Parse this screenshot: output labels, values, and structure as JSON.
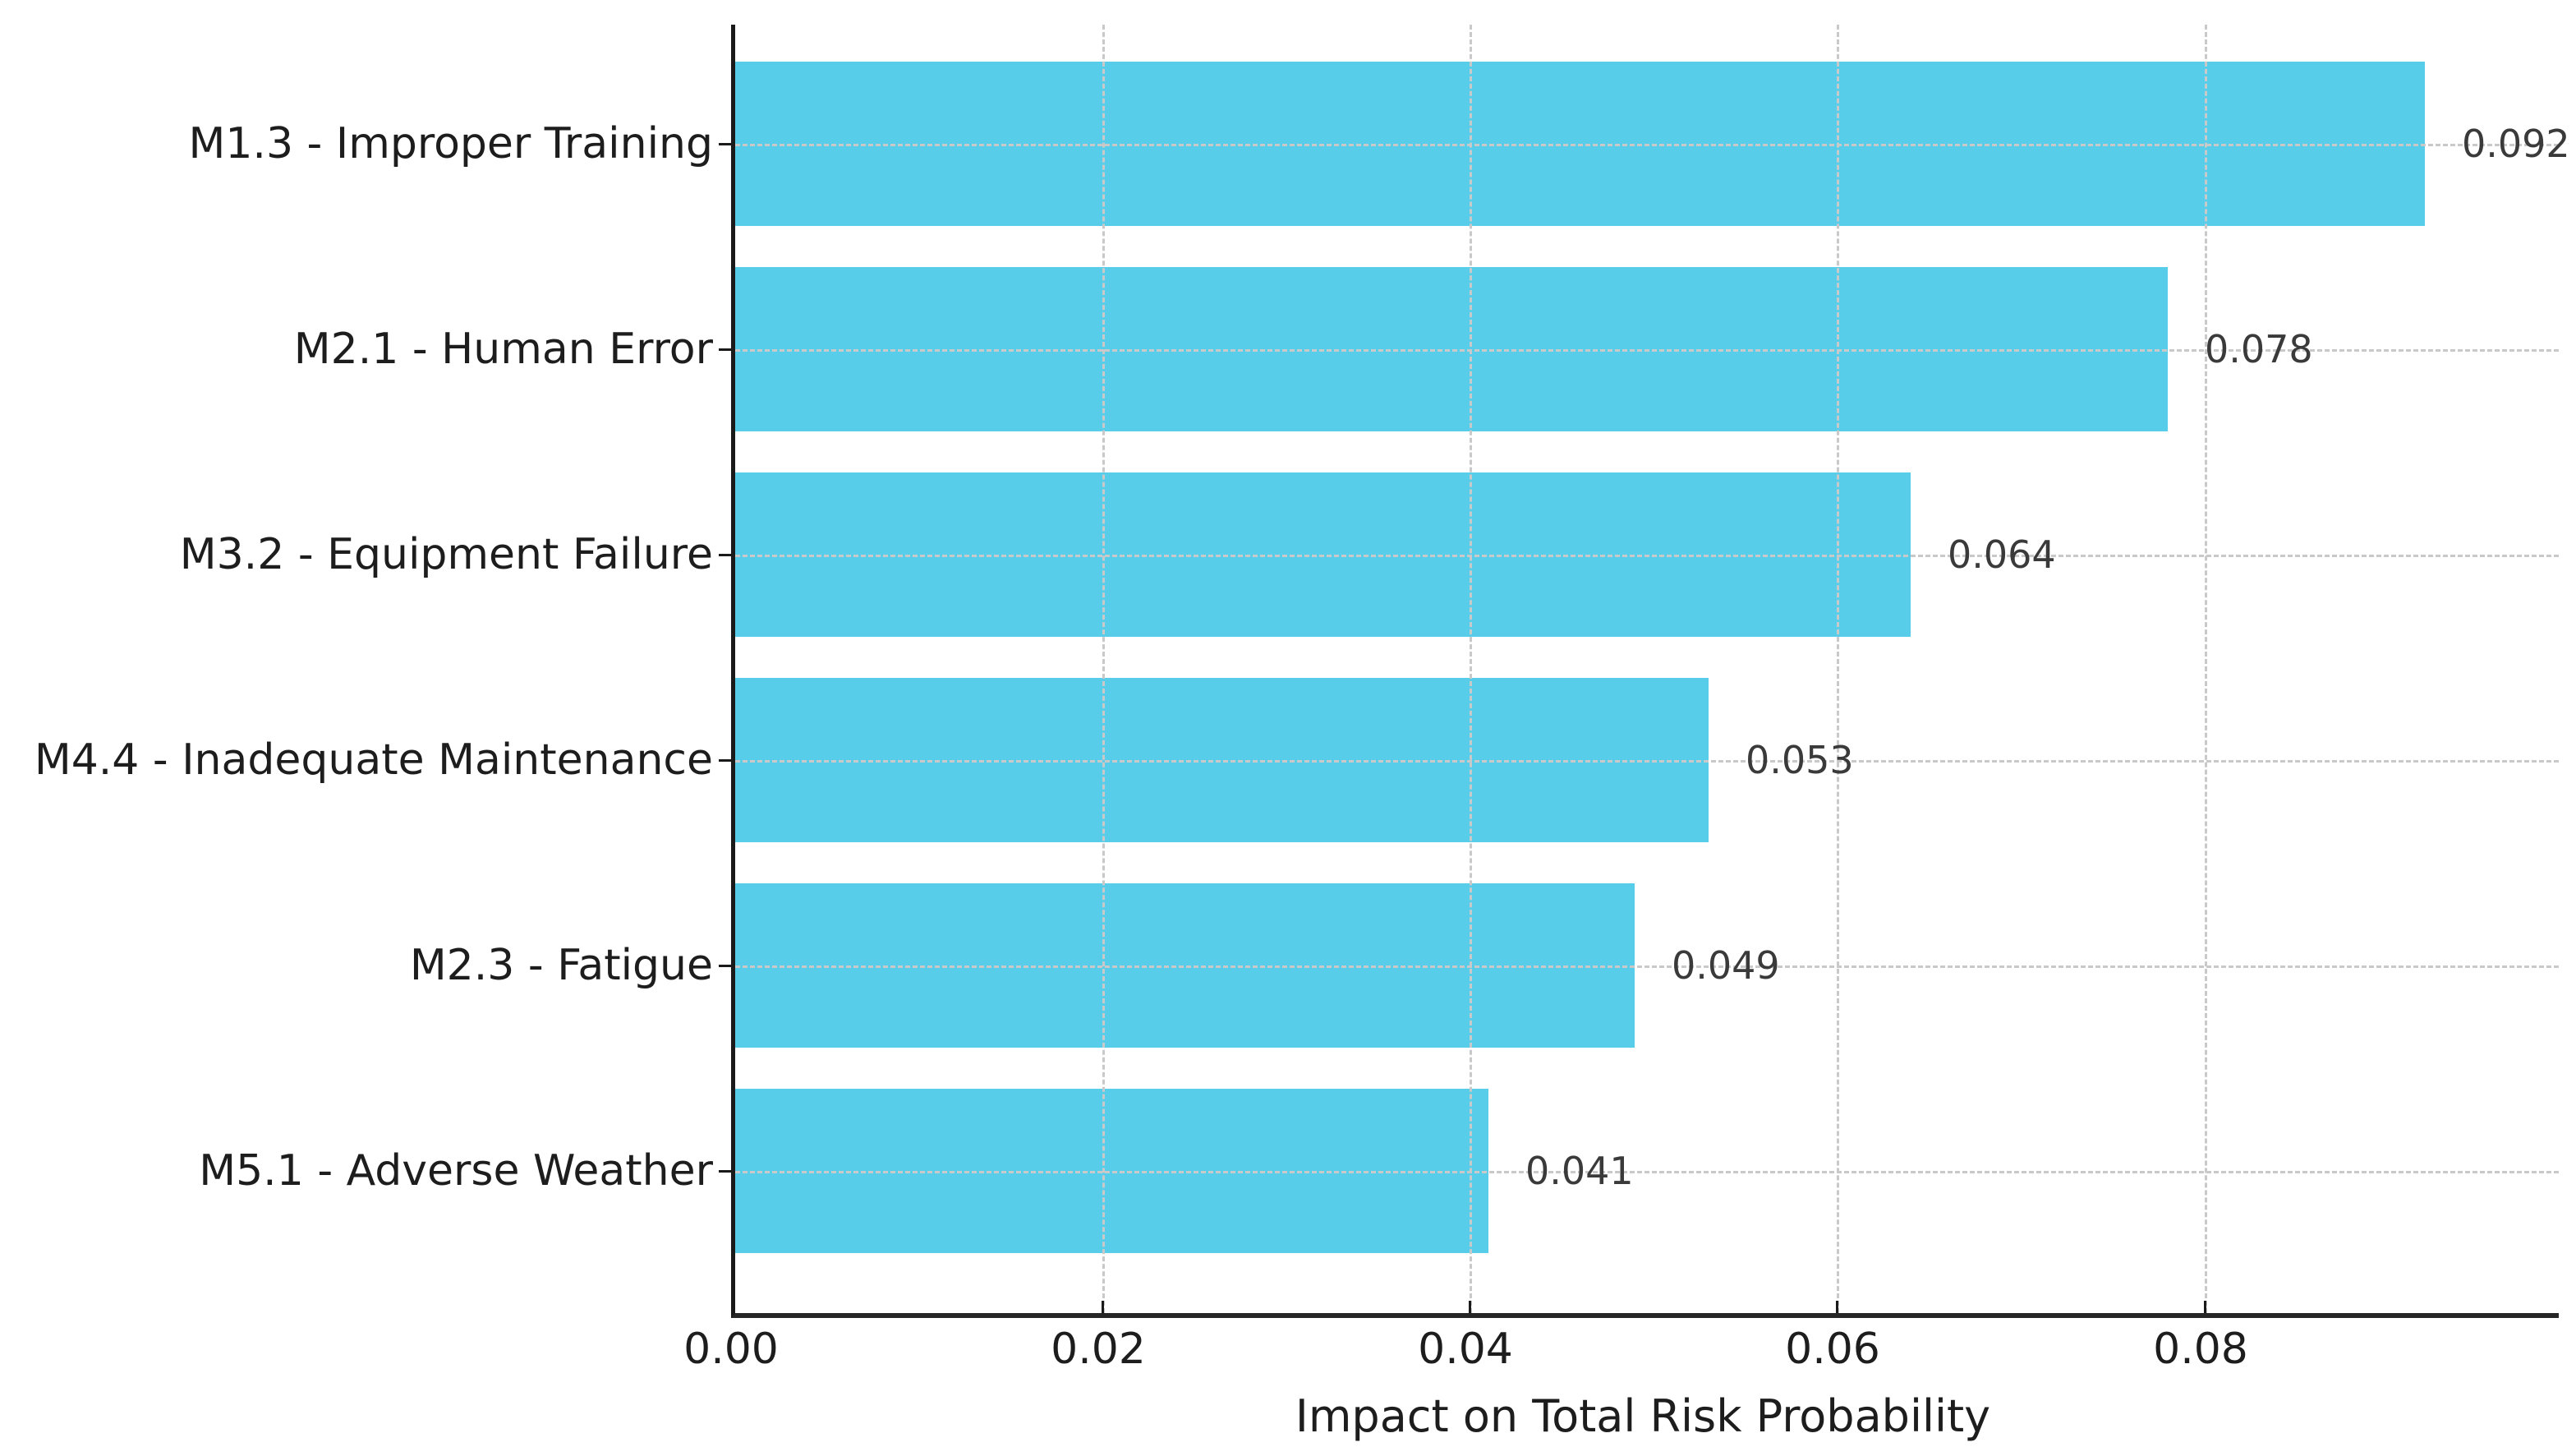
{
  "chart_data": {
    "type": "bar",
    "orientation": "horizontal",
    "title": "",
    "xlabel": "Impact on Total Risk Probability",
    "ylabel": "",
    "categories": [
      "M1.3 - Improper Training",
      "M2.1 - Human Error",
      "M3.2 - Equipment Failure",
      "M4.4 - Inadequate Maintenance",
      "M2.3 - Fatigue",
      "M5.1 - Adverse Weather"
    ],
    "values": [
      0.092,
      0.078,
      0.064,
      0.053,
      0.049,
      0.041
    ],
    "value_labels": [
      "0.092",
      "0.078",
      "0.064",
      "0.053",
      "0.049",
      "0.041"
    ],
    "x_tick_values": [
      0.0,
      0.02,
      0.04,
      0.06,
      0.08
    ],
    "x_tick_labels": [
      "0.00",
      "0.02",
      "0.04",
      "0.06",
      "0.08"
    ],
    "xlim": [
      0,
      0.0993
    ],
    "grid": {
      "visible": true,
      "style": "dashed",
      "axes": "both",
      "above_bars": true
    },
    "legend": {
      "visible": false
    },
    "colors": {
      "bar": "#57CDE9",
      "grid": "#c9c9c9",
      "spine": "#1a1a1a",
      "tick_mark": "#1a1a1a",
      "tick_text": "#1d1d1d",
      "annotation_text": "#3a3a3a",
      "background": "#ffffff"
    }
  }
}
